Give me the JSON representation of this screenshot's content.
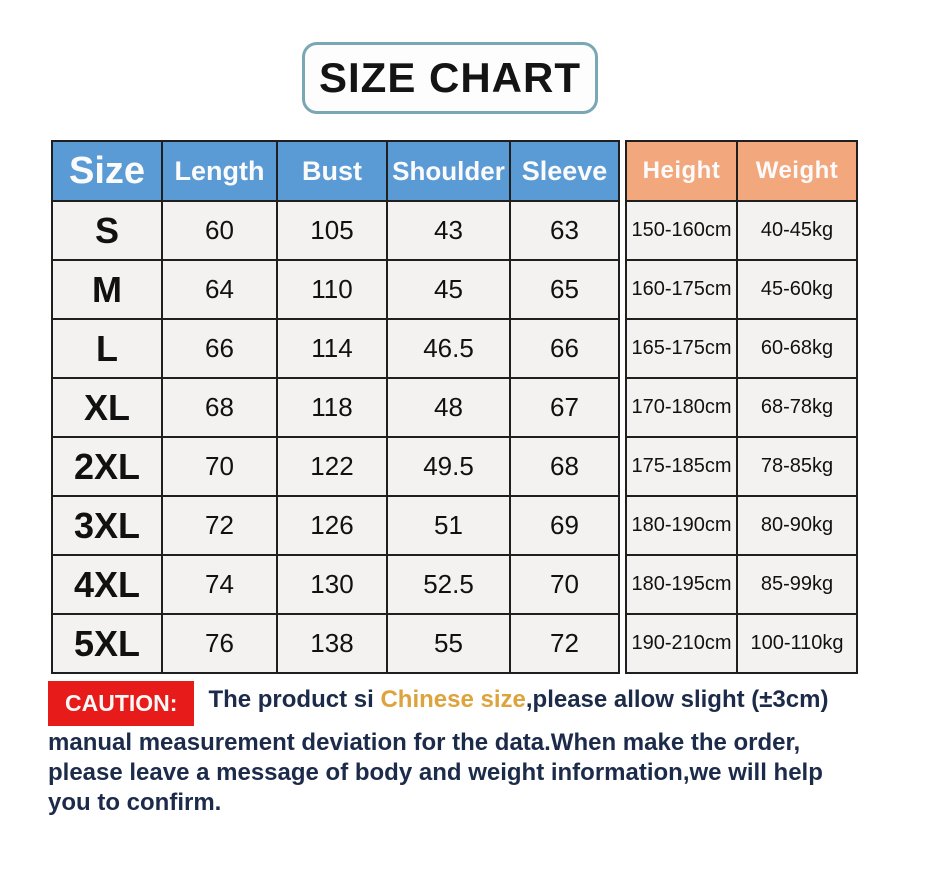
{
  "title": "SIZE CHART",
  "table": {
    "left_headers": [
      "Size",
      "Length",
      "Bust",
      "Shoulder",
      "Sleeve"
    ],
    "right_headers": [
      "Height",
      "Weight"
    ],
    "rows": [
      {
        "size": "S",
        "length": "60",
        "bust": "105",
        "shoulder": "43",
        "sleeve": "63",
        "height": "150-160cm",
        "weight": "40-45kg"
      },
      {
        "size": "M",
        "length": "64",
        "bust": "110",
        "shoulder": "45",
        "sleeve": "65",
        "height": "160-175cm",
        "weight": "45-60kg"
      },
      {
        "size": "L",
        "length": "66",
        "bust": "114",
        "shoulder": "46.5",
        "sleeve": "66",
        "height": "165-175cm",
        "weight": "60-68kg"
      },
      {
        "size": "XL",
        "length": "68",
        "bust": "118",
        "shoulder": "48",
        "sleeve": "67",
        "height": "170-180cm",
        "weight": "68-78kg"
      },
      {
        "size": "2XL",
        "length": "70",
        "bust": "122",
        "shoulder": "49.5",
        "sleeve": "68",
        "height": "175-185cm",
        "weight": "78-85kg"
      },
      {
        "size": "3XL",
        "length": "72",
        "bust": "126",
        "shoulder": "51",
        "sleeve": "69",
        "height": "180-190cm",
        "weight": "80-90kg"
      },
      {
        "size": "4XL",
        "length": "74",
        "bust": "130",
        "shoulder": "52.5",
        "sleeve": "70",
        "height": "180-195cm",
        "weight": "85-99kg"
      },
      {
        "size": "5XL",
        "length": "76",
        "bust": "138",
        "shoulder": "55",
        "sleeve": "72",
        "height": "190-210cm",
        "weight": "100-110kg"
      }
    ]
  },
  "caution": {
    "label": "CAUTION:",
    "line1_pre": "The product si ",
    "line1_highlight": "Chinese size",
    "line1_post": ",please allow slight (±3cm)",
    "line2": "manual measurement deviation for the data.When make the order,",
    "line3": "please leave a message of body and weight information,we will help",
    "line4": "you to confirm."
  },
  "colors": {
    "header_blue": "#5b9bd5",
    "header_orange": "#f2a87c",
    "row_background": "#f3f2f0",
    "table_border": "#1f1f1f",
    "title_border": "#79a7b4",
    "caution_red": "#e81b1b",
    "caution_text_navy": "#1c2b4a",
    "highlight_gold": "#dda33c"
  }
}
